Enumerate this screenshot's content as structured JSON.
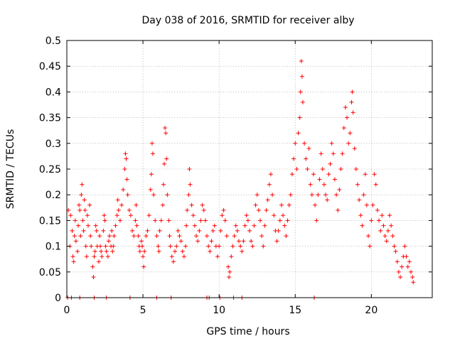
{
  "chart_data": {
    "type": "scatter",
    "title": "Day 038 of 2016, SRMTID for receiver alby",
    "xlabel": "GPS time / hours",
    "ylabel": "SRMTID / TECUs",
    "xlim": [
      0,
      24
    ],
    "ylim": [
      0,
      0.5
    ],
    "x_ticks": [
      0,
      5,
      10,
      15,
      20
    ],
    "x_tick_labels": [
      "0",
      "5",
      "10",
      "15",
      "20"
    ],
    "y_ticks": [
      0,
      0.05,
      0.1,
      0.15,
      0.2,
      0.25,
      0.3,
      0.35,
      0.4,
      0.45,
      0.5
    ],
    "y_tick_labels": [
      "0",
      "0.05",
      "0.1",
      "0.15",
      "0.2",
      "0.25",
      "0.3",
      "0.35",
      "0.4",
      "0.45",
      "0.5"
    ],
    "grid": true,
    "marker": "+",
    "color": "#ff0000",
    "series": [
      {
        "name": "SRMTID",
        "points": [
          [
            0.05,
            0
          ],
          [
            0.1,
            0.17
          ],
          [
            0.2,
            0.1
          ],
          [
            0.25,
            0.16
          ],
          [
            0.35,
            0.13
          ],
          [
            0.4,
            0.08
          ],
          [
            0.45,
            0.07
          ],
          [
            0.5,
            0.12
          ],
          [
            0.55,
            0.15
          ],
          [
            0.6,
            0.11
          ],
          [
            0.7,
            0.09
          ],
          [
            0.75,
            0.14
          ],
          [
            0.8,
            0.18
          ],
          [
            0.85,
            0.17
          ],
          [
            0.9,
            0.12
          ],
          [
            0.95,
            0.2
          ],
          [
            1.0,
            0.22
          ],
          [
            1.05,
            0.15
          ],
          [
            1.1,
            0.13
          ],
          [
            1.15,
            0.19
          ],
          [
            1.2,
            0.17
          ],
          [
            1.25,
            0.1
          ],
          [
            1.3,
            0.08
          ],
          [
            1.35,
            0.16
          ],
          [
            1.4,
            0.14
          ],
          [
            1.5,
            0.18
          ],
          [
            1.55,
            0.12
          ],
          [
            1.6,
            0.1
          ],
          [
            1.7,
            0.06
          ],
          [
            1.75,
            0.04
          ],
          [
            1.8,
            0.08
          ],
          [
            1.85,
            0.09
          ],
          [
            1.9,
            0.14
          ],
          [
            1.95,
            0.13
          ],
          [
            2.0,
            0.1
          ],
          [
            2.1,
            0.07
          ],
          [
            2.15,
            0.12
          ],
          [
            2.2,
            0.1
          ],
          [
            2.25,
            0.09
          ],
          [
            2.3,
            0.08
          ],
          [
            2.4,
            0.13
          ],
          [
            2.45,
            0.16
          ],
          [
            2.5,
            0.15
          ],
          [
            2.55,
            0.1
          ],
          [
            2.6,
            0.09
          ],
          [
            2.7,
            0.08
          ],
          [
            2.75,
            0.11
          ],
          [
            2.8,
            0.12
          ],
          [
            2.9,
            0.1
          ],
          [
            2.95,
            0.13
          ],
          [
            3.0,
            0.09
          ],
          [
            3.05,
            0.1
          ],
          [
            3.1,
            0.12
          ],
          [
            3.2,
            0.14
          ],
          [
            3.3,
            0.16
          ],
          [
            3.35,
            0.19
          ],
          [
            3.4,
            0.17
          ],
          [
            3.5,
            0.15
          ],
          [
            3.6,
            0.18
          ],
          [
            3.7,
            0.21
          ],
          [
            3.8,
            0.25
          ],
          [
            3.85,
            0.28
          ],
          [
            3.9,
            0.27
          ],
          [
            3.95,
            0.23
          ],
          [
            4.0,
            0.2
          ],
          [
            4.1,
            0.17
          ],
          [
            4.2,
            0.16
          ],
          [
            4.3,
            0.13
          ],
          [
            4.4,
            0.12
          ],
          [
            4.5,
            0.15
          ],
          [
            4.55,
            0.18
          ],
          [
            4.6,
            0.14
          ],
          [
            4.7,
            0.12
          ],
          [
            4.75,
            0.1
          ],
          [
            4.8,
            0.09
          ],
          [
            4.9,
            0.11
          ],
          [
            4.95,
            0.1
          ],
          [
            5.0,
            0.08
          ],
          [
            5.05,
            0.06
          ],
          [
            5.1,
            0.09
          ],
          [
            5.2,
            0.12
          ],
          [
            5.3,
            0.13
          ],
          [
            5.4,
            0.16
          ],
          [
            5.5,
            0.21
          ],
          [
            5.55,
            0.24
          ],
          [
            5.6,
            0.3
          ],
          [
            5.65,
            0.28
          ],
          [
            5.7,
            0.2
          ],
          [
            5.8,
            0.15
          ],
          [
            5.9,
            0.12
          ],
          [
            6.0,
            0.1
          ],
          [
            6.05,
            0.09
          ],
          [
            6.1,
            0.13
          ],
          [
            6.2,
            0.15
          ],
          [
            6.3,
            0.18
          ],
          [
            6.35,
            0.22
          ],
          [
            6.4,
            0.26
          ],
          [
            6.45,
            0.33
          ],
          [
            6.5,
            0.32
          ],
          [
            6.55,
            0.27
          ],
          [
            6.6,
            0.2
          ],
          [
            6.7,
            0.15
          ],
          [
            6.75,
            0.12
          ],
          [
            6.8,
            0.1
          ],
          [
            6.9,
            0.08
          ],
          [
            7.0,
            0.07
          ],
          [
            7.1,
            0.09
          ],
          [
            7.2,
            0.1
          ],
          [
            7.3,
            0.13
          ],
          [
            7.4,
            0.12
          ],
          [
            7.5,
            0.11
          ],
          [
            7.6,
            0.09
          ],
          [
            7.7,
            0.08
          ],
          [
            7.8,
            0.1
          ],
          [
            7.85,
            0.14
          ],
          [
            7.9,
            0.17
          ],
          [
            8.0,
            0.2
          ],
          [
            8.05,
            0.25
          ],
          [
            8.1,
            0.22
          ],
          [
            8.2,
            0.18
          ],
          [
            8.3,
            0.16
          ],
          [
            8.4,
            0.14
          ],
          [
            8.5,
            0.12
          ],
          [
            8.6,
            0.11
          ],
          [
            8.7,
            0.13
          ],
          [
            8.8,
            0.15
          ],
          [
            8.9,
            0.18
          ],
          [
            9.0,
            0.17
          ],
          [
            9.1,
            0.15
          ],
          [
            9.2,
            0.12
          ],
          [
            9.3,
            0.1
          ],
          [
            9.4,
            0.09
          ],
          [
            9.5,
            0.11
          ],
          [
            9.6,
            0.13
          ],
          [
            9.7,
            0.14
          ],
          [
            9.8,
            0.1
          ],
          [
            9.9,
            0.08
          ],
          [
            10.0,
            0.1
          ],
          [
            10.1,
            0.13
          ],
          [
            10.2,
            0.16
          ],
          [
            10.3,
            0.17
          ],
          [
            10.4,
            0.15
          ],
          [
            10.5,
            0.12
          ],
          [
            10.6,
            0.06
          ],
          [
            10.65,
            0.04
          ],
          [
            10.7,
            0.05
          ],
          [
            10.8,
            0.08
          ],
          [
            10.9,
            0.1
          ],
          [
            11.0,
            0.12
          ],
          [
            11.1,
            0.14
          ],
          [
            11.2,
            0.13
          ],
          [
            11.3,
            0.11
          ],
          [
            11.4,
            0.1
          ],
          [
            11.5,
            0.09
          ],
          [
            11.6,
            0.11
          ],
          [
            11.7,
            0.14
          ],
          [
            11.8,
            0.16
          ],
          [
            11.9,
            0.15
          ],
          [
            12.0,
            0.13
          ],
          [
            12.1,
            0.11
          ],
          [
            12.2,
            0.1
          ],
          [
            12.3,
            0.14
          ],
          [
            12.4,
            0.18
          ],
          [
            12.5,
            0.2
          ],
          [
            12.6,
            0.17
          ],
          [
            12.7,
            0.15
          ],
          [
            12.8,
            0.12
          ],
          [
            12.9,
            0.1
          ],
          [
            13.0,
            0.14
          ],
          [
            13.1,
            0.17
          ],
          [
            13.2,
            0.19
          ],
          [
            13.3,
            0.22
          ],
          [
            13.4,
            0.24
          ],
          [
            13.5,
            0.2
          ],
          [
            13.6,
            0.16
          ],
          [
            13.7,
            0.13
          ],
          [
            13.8,
            0.11
          ],
          [
            13.9,
            0.13
          ],
          [
            14.0,
            0.15
          ],
          [
            14.1,
            0.18
          ],
          [
            14.2,
            0.16
          ],
          [
            14.3,
            0.14
          ],
          [
            14.4,
            0.12
          ],
          [
            14.5,
            0.15
          ],
          [
            14.6,
            0.18
          ],
          [
            14.7,
            0.2
          ],
          [
            14.8,
            0.24
          ],
          [
            14.9,
            0.27
          ],
          [
            15.0,
            0.3
          ],
          [
            15.1,
            0.25
          ],
          [
            15.2,
            0.32
          ],
          [
            15.3,
            0.35
          ],
          [
            15.35,
            0.4
          ],
          [
            15.4,
            0.46
          ],
          [
            15.45,
            0.43
          ],
          [
            15.5,
            0.38
          ],
          [
            15.6,
            0.3
          ],
          [
            15.7,
            0.27
          ],
          [
            15.8,
            0.25
          ],
          [
            15.9,
            0.29
          ],
          [
            16.0,
            0.22
          ],
          [
            16.1,
            0.2
          ],
          [
            16.2,
            0.24
          ],
          [
            16.3,
            0.18
          ],
          [
            16.4,
            0.15
          ],
          [
            16.5,
            0.2
          ],
          [
            16.6,
            0.23
          ],
          [
            16.7,
            0.28
          ],
          [
            16.8,
            0.25
          ],
          [
            16.9,
            0.22
          ],
          [
            17.0,
            0.2
          ],
          [
            17.1,
            0.19
          ],
          [
            17.2,
            0.24
          ],
          [
            17.3,
            0.26
          ],
          [
            17.4,
            0.3
          ],
          [
            17.5,
            0.28
          ],
          [
            17.6,
            0.23
          ],
          [
            17.7,
            0.2
          ],
          [
            17.8,
            0.17
          ],
          [
            17.9,
            0.21
          ],
          [
            18.0,
            0.25
          ],
          [
            18.1,
            0.28
          ],
          [
            18.2,
            0.33
          ],
          [
            18.3,
            0.37
          ],
          [
            18.4,
            0.35
          ],
          [
            18.5,
            0.3
          ],
          [
            18.6,
            0.32
          ],
          [
            18.7,
            0.38
          ],
          [
            18.75,
            0.4
          ],
          [
            18.8,
            0.36
          ],
          [
            18.9,
            0.29
          ],
          [
            19.0,
            0.25
          ],
          [
            19.1,
            0.22
          ],
          [
            19.2,
            0.19
          ],
          [
            19.3,
            0.16
          ],
          [
            19.4,
            0.14
          ],
          [
            19.5,
            0.2
          ],
          [
            19.6,
            0.24
          ],
          [
            19.7,
            0.18
          ],
          [
            19.8,
            0.12
          ],
          [
            19.9,
            0.1
          ],
          [
            20.0,
            0.15
          ],
          [
            20.1,
            0.18
          ],
          [
            20.2,
            0.24
          ],
          [
            20.3,
            0.22
          ],
          [
            20.4,
            0.17
          ],
          [
            20.5,
            0.15
          ],
          [
            20.6,
            0.13
          ],
          [
            20.7,
            0.16
          ],
          [
            20.8,
            0.14
          ],
          [
            20.9,
            0.12
          ],
          [
            21.0,
            0.11
          ],
          [
            21.1,
            0.13
          ],
          [
            21.2,
            0.16
          ],
          [
            21.3,
            0.14
          ],
          [
            21.4,
            0.12
          ],
          [
            21.5,
            0.1
          ],
          [
            21.6,
            0.09
          ],
          [
            21.7,
            0.07
          ],
          [
            21.8,
            0.05
          ],
          [
            21.9,
            0.04
          ],
          [
            22.0,
            0.06
          ],
          [
            22.1,
            0.08
          ],
          [
            22.2,
            0.1
          ],
          [
            22.3,
            0.08
          ],
          [
            22.4,
            0.06
          ],
          [
            22.5,
            0.07
          ],
          [
            22.6,
            0.05
          ],
          [
            22.7,
            0.04
          ],
          [
            22.75,
            0.03
          ],
          [
            0.3,
            0
          ],
          [
            0.85,
            0
          ],
          [
            1.8,
            0
          ],
          [
            2.6,
            0
          ],
          [
            4.15,
            0
          ],
          [
            5.9,
            0
          ],
          [
            6.85,
            0
          ],
          [
            9.2,
            0
          ],
          [
            9.35,
            0
          ],
          [
            10.05,
            0
          ],
          [
            10.95,
            0
          ],
          [
            11.5,
            0
          ],
          [
            16.25,
            0
          ]
        ]
      }
    ]
  }
}
